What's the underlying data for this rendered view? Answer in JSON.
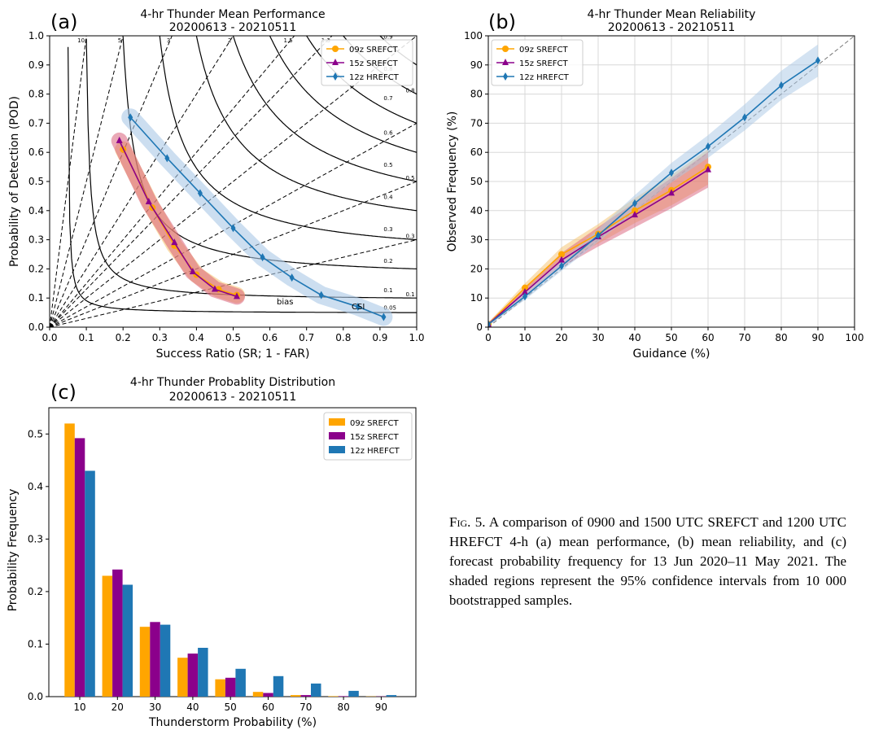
{
  "figure": {
    "caption_lead": "Fig. 5.",
    "caption_text": " A comparison of 0900 and 1500 UTC SREFCT and 1200 UTC HREFCT 4-h (a) mean performance, (b) mean reliability, and (c) forecast probability frequency for 13 Jun 2020–11 May 2021. The shaded regions represent the 95% confidence intervals from 10 000 bootstrapped samples."
  },
  "colors": {
    "srefct09": "#ffa500",
    "srefct15": "#8b008b",
    "hrefct12": "#1f77b4",
    "band09": "#f5c26b",
    "band15": "#d9607a",
    "band12": "#aac8e6"
  },
  "chart_data": [
    {
      "panel": "(a)",
      "type": "line",
      "title": "4-hr Thunder Mean Performance",
      "subtitle": "20200613 - 20210511",
      "xlabel": "Success Ratio (SR; 1 - FAR)",
      "ylabel": "Probability of Detection (POD)",
      "xlim": [
        0,
        1
      ],
      "ylim": [
        0,
        1
      ],
      "xticks": [
        "0.0",
        "0.1",
        "0.2",
        "0.3",
        "0.4",
        "0.5",
        "0.6",
        "0.7",
        "0.8",
        "0.9",
        "1.0"
      ],
      "yticks": [
        "0.0",
        "0.1",
        "0.2",
        "0.3",
        "0.4",
        "0.5",
        "0.6",
        "0.7",
        "0.8",
        "0.9",
        "1.0"
      ],
      "legend_position": "top-right",
      "bias_lines": [
        0.3,
        0.5,
        0.7,
        1,
        1.3,
        1.5,
        2,
        3,
        5,
        10
      ],
      "bias_labels": [
        "10",
        "5",
        "3",
        "2",
        "1.5",
        "1.3"
      ],
      "csi_lines": [
        0.05,
        0.1,
        0.2,
        0.3,
        0.4,
        0.5,
        0.6,
        0.7,
        0.8,
        0.9
      ],
      "csi_labels": [
        "0.05",
        "0.1",
        "0.2",
        "0.3",
        "0.4",
        "0.5",
        "0.6",
        "0.7",
        "0.8",
        "0.9"
      ],
      "right_labels": [
        "0.1",
        "0.3",
        "0.5",
        "0.8"
      ],
      "annotations": [
        "bias",
        "CSI"
      ],
      "series": [
        {
          "name": "09z SREFCT",
          "marker": "circle",
          "x": [
            0.2,
            0.28,
            0.34,
            0.4,
            0.46,
            0.51
          ],
          "y": [
            0.61,
            0.41,
            0.28,
            0.18,
            0.13,
            0.11
          ]
        },
        {
          "name": "15z SREFCT",
          "marker": "triangle",
          "x": [
            0.19,
            0.27,
            0.34,
            0.39,
            0.45,
            0.51
          ],
          "y": [
            0.64,
            0.43,
            0.29,
            0.19,
            0.13,
            0.105
          ]
        },
        {
          "name": "12z HREFCT",
          "marker": "diamond",
          "x": [
            0.22,
            0.32,
            0.41,
            0.5,
            0.58,
            0.66,
            0.74,
            0.84,
            0.91
          ],
          "y": [
            0.72,
            0.58,
            0.46,
            0.34,
            0.24,
            0.17,
            0.11,
            0.07,
            0.035
          ]
        }
      ]
    },
    {
      "panel": "(b)",
      "type": "line",
      "title": "4-hr Thunder Mean Reliability",
      "subtitle": "20200613 - 20210511",
      "xlabel": "Guidance (%)",
      "ylabel": "Observed Frequency (%)",
      "xlim": [
        0,
        100
      ],
      "ylim": [
        0,
        100
      ],
      "xticks": [
        "0",
        "10",
        "20",
        "30",
        "40",
        "50",
        "60",
        "70",
        "80",
        "90",
        "100"
      ],
      "yticks": [
        "0",
        "10",
        "20",
        "30",
        "40",
        "50",
        "60",
        "70",
        "80",
        "90",
        "100"
      ],
      "grid": true,
      "legend_position": "top-left",
      "series": [
        {
          "name": "09z SREFCT",
          "marker": "circle",
          "x": [
            0,
            10,
            20,
            30,
            40,
            50,
            60
          ],
          "y": [
            1,
            13.5,
            25,
            32,
            40,
            47,
            55
          ]
        },
        {
          "name": "15z SREFCT",
          "marker": "triangle",
          "x": [
            0,
            10,
            20,
            30,
            40,
            50,
            60
          ],
          "y": [
            1,
            12,
            23,
            31,
            38.5,
            46,
            54
          ]
        },
        {
          "name": "12z HREFCT",
          "marker": "diamond",
          "x": [
            0,
            10,
            20,
            30,
            40,
            50,
            60,
            70,
            80,
            90
          ],
          "y": [
            1,
            10.5,
            21,
            31.5,
            42.5,
            53,
            62,
            72,
            83,
            91.5
          ]
        }
      ]
    },
    {
      "panel": "(c)",
      "type": "bar",
      "title": "4-hr Thunder Probablity Distribution",
      "subtitle": "20200613 - 20210511",
      "xlabel": "Thunderstorm Probability (%)",
      "ylabel": "Probability Frequency",
      "ylim": [
        0,
        0.55
      ],
      "yticks": [
        "0.0",
        "0.1",
        "0.2",
        "0.3",
        "0.4",
        "0.5"
      ],
      "categories": [
        "10",
        "20",
        "30",
        "40",
        "50",
        "60",
        "70",
        "80",
        "90"
      ],
      "legend_position": "top-right",
      "series": [
        {
          "name": "09z SREFCT",
          "values": [
            0.52,
            0.23,
            0.133,
            0.074,
            0.033,
            0.009,
            0.003,
            0.001,
            0.0005
          ]
        },
        {
          "name": "15z SREFCT",
          "values": [
            0.492,
            0.242,
            0.142,
            0.082,
            0.036,
            0.007,
            0.003,
            0.001,
            0.0005
          ]
        },
        {
          "name": "12z HREFCT",
          "values": [
            0.43,
            0.213,
            0.137,
            0.093,
            0.053,
            0.039,
            0.025,
            0.011,
            0.003
          ]
        }
      ]
    }
  ]
}
